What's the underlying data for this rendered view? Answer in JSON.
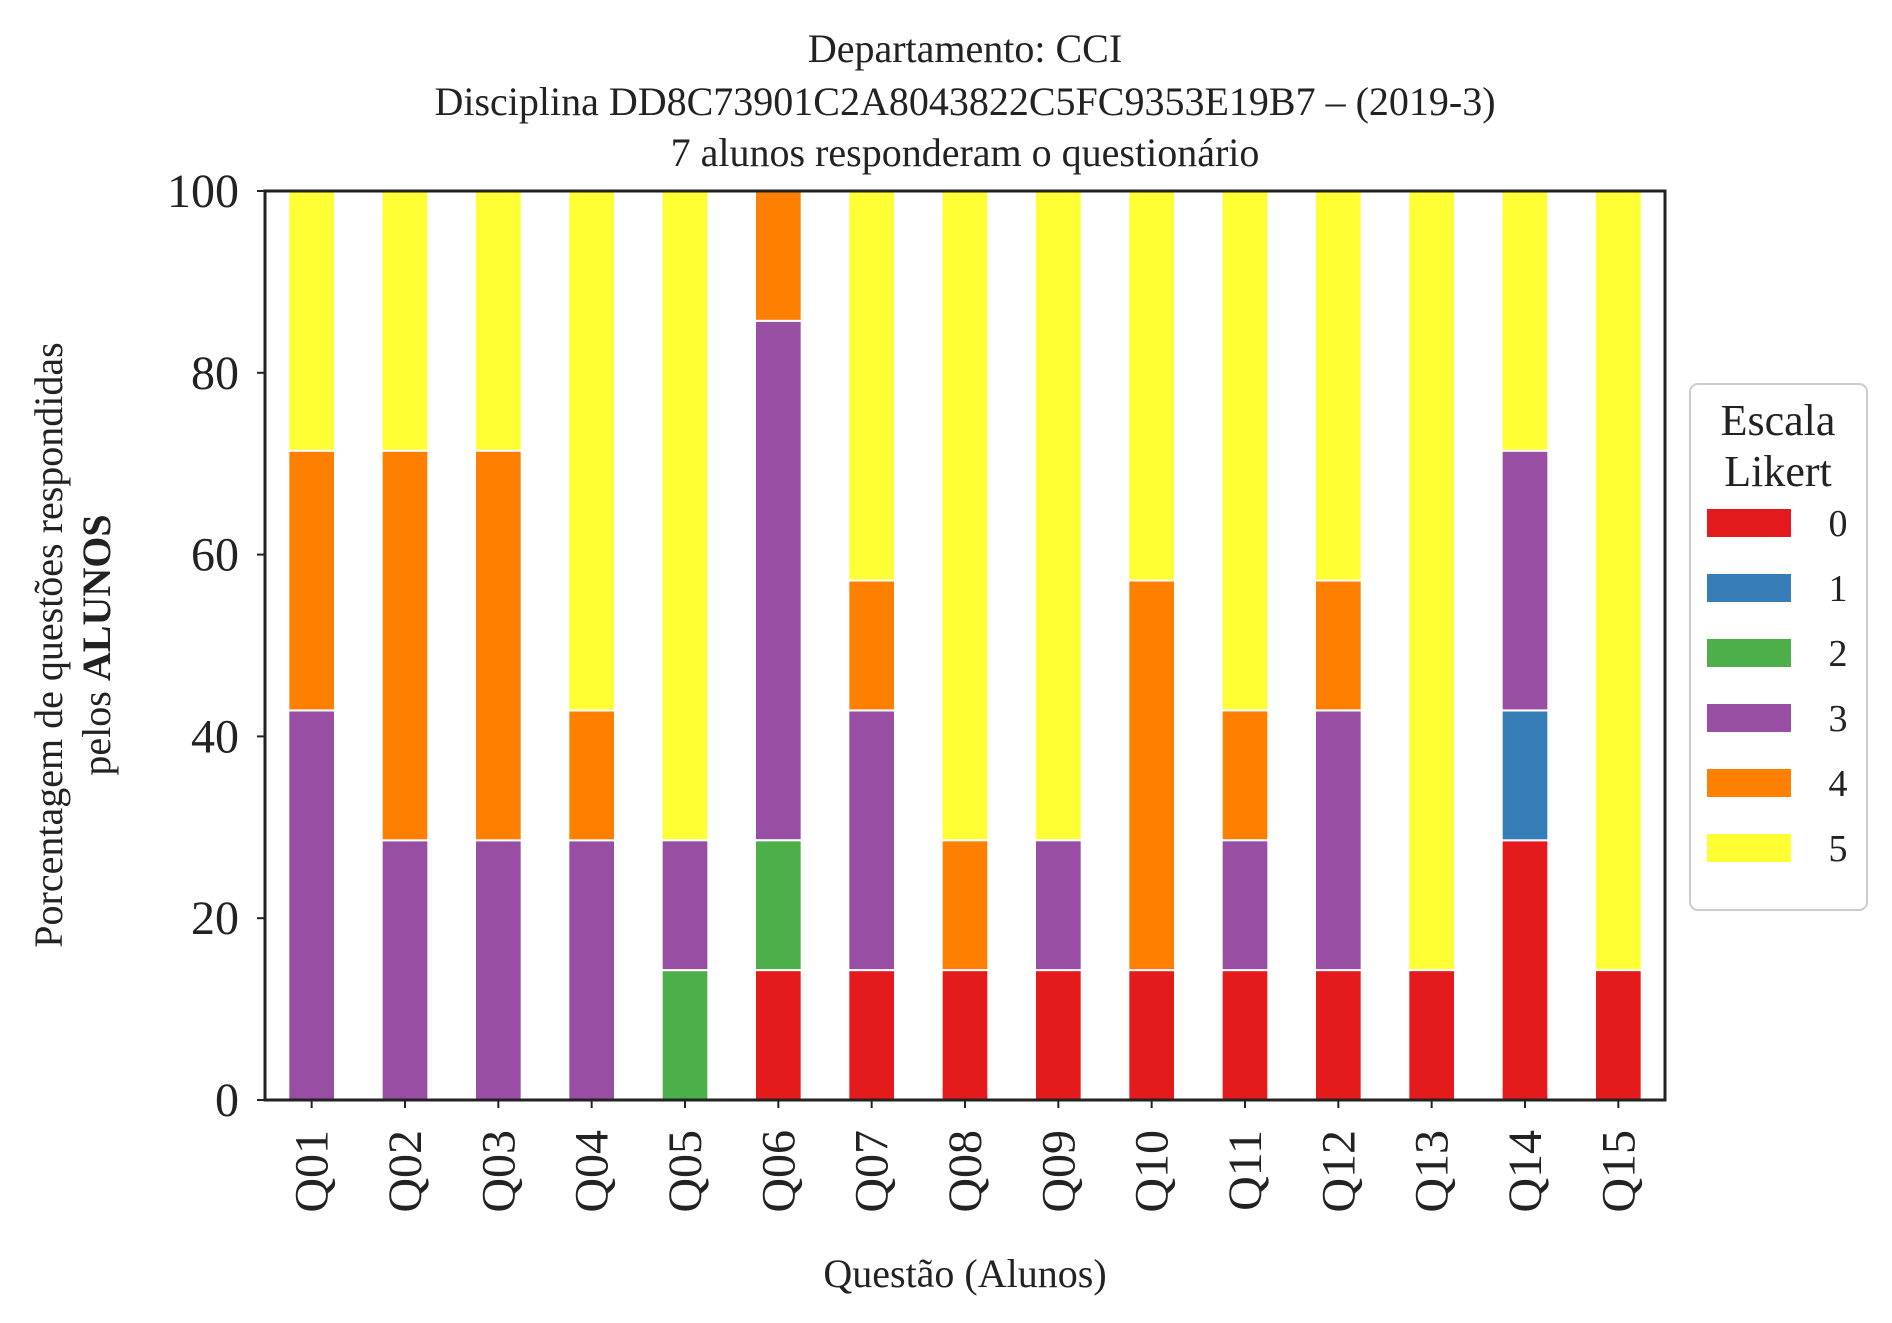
{
  "chart_data": {
    "type": "bar",
    "stacked": true,
    "title_lines": [
      "Departamento: CCI",
      "Disciplina DD8C73901C2A8043822C5FC9353E19B7 – (2019-3)",
      "7 alunos responderam o questionário"
    ],
    "xlabel": "Questão (Alunos)",
    "ylabel_line1": "Porcentagem de questões respondidas",
    "ylabel_line2_prefix": "pelos ",
    "ylabel_line2_bold": "ALUNOS",
    "ylim": [
      0,
      100
    ],
    "yticks": [
      "0",
      "20",
      "40",
      "60",
      "80",
      "100"
    ],
    "categories": [
      "Q01",
      "Q02",
      "Q03",
      "Q04",
      "Q05",
      "Q06",
      "Q07",
      "Q08",
      "Q09",
      "Q10",
      "Q11",
      "Q12",
      "Q13",
      "Q14",
      "Q15"
    ],
    "legend_title_lines": [
      "Escala",
      "Likert"
    ],
    "legend_position": "right",
    "grid": false,
    "series": [
      {
        "name": "0",
        "color": "#e41a1c",
        "values": [
          0,
          0,
          0,
          0,
          0,
          14.29,
          14.29,
          14.29,
          14.29,
          14.29,
          14.29,
          14.29,
          14.29,
          28.57,
          14.29
        ]
      },
      {
        "name": "1",
        "color": "#377eb8",
        "values": [
          0,
          0,
          0,
          0,
          0,
          0,
          0,
          0,
          0,
          0,
          0,
          0,
          0,
          14.29,
          0
        ]
      },
      {
        "name": "2",
        "color": "#4daf4a",
        "values": [
          0,
          0,
          0,
          0,
          14.29,
          14.29,
          0,
          0,
          0,
          0,
          0,
          0,
          0,
          0,
          0
        ]
      },
      {
        "name": "3",
        "color": "#984ea3",
        "values": [
          42.86,
          28.57,
          28.57,
          28.57,
          14.29,
          57.14,
          28.57,
          0,
          14.29,
          0,
          14.29,
          28.57,
          0,
          28.57,
          0
        ]
      },
      {
        "name": "4",
        "color": "#ff7f00",
        "values": [
          28.57,
          42.86,
          42.86,
          14.29,
          0,
          14.29,
          14.29,
          14.29,
          0,
          42.86,
          14.29,
          14.29,
          0,
          0,
          0
        ]
      },
      {
        "name": "5",
        "color": "#ffff33",
        "values": [
          28.57,
          28.57,
          28.57,
          57.14,
          71.43,
          0,
          42.86,
          71.43,
          71.43,
          42.86,
          57.14,
          42.86,
          85.71,
          28.57,
          85.71
        ]
      }
    ]
  }
}
